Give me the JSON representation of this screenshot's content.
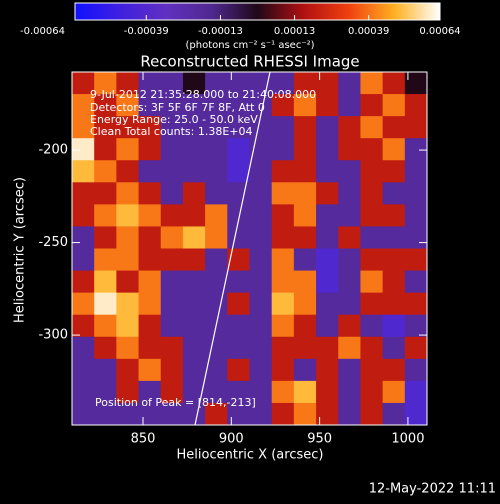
{
  "chart_data": {
    "type": "heatmap",
    "title": "Reconstructed RHESSI Image",
    "xlabel": "Heliocentric X (arcsec)",
    "ylabel": "Heliocentric Y (arcsec)",
    "xlim": [
      809.8,
      1010.8
    ],
    "ylim": [
      -348.6,
      -157.8
    ],
    "xticks": [
      850,
      900,
      950,
      1000
    ],
    "yticks": [
      -200,
      -250,
      -300
    ],
    "colorbar": {
      "label": "(photons cm⁻² s⁻¹ asec⁻²)",
      "clim": [
        -0.00064,
        0.00064
      ],
      "ticks": [
        -0.00064,
        -0.00039,
        -0.00013,
        0.00013,
        0.00039,
        0.00064
      ],
      "colormap": [
        "#1010ff",
        "#4020e0",
        "#6030c0",
        "#502890",
        "#200818",
        "#b01010",
        "#f04010",
        "#ffb020",
        "#ffffff"
      ]
    },
    "annotations": [
      "9-Jul-2012 21:35:28.000 to 21:40:08.000",
      "Detectors: 3F 5F 6F 7F 8F, Att 0",
      "Energy Range: 25.0 - 50.0 keV",
      "Clean    Total counts: 1.38E+04",
      "Position of Peak = [814,-213]"
    ],
    "footer": "12-May-2022 11:11",
    "z": [
      [
        0.0002,
        0.0004,
        0.0002,
        -0.0002,
        -0.0002,
        0,
        -0.0002,
        -0.0002,
        -0.0002,
        -0.0002,
        0.0002,
        0.0002,
        -0.0002,
        0.0004,
        0.0002,
        0
      ],
      [
        0.0004,
        0.0002,
        0.0004,
        -0.0002,
        -0.0002,
        -0.0002,
        -0.0002,
        -0.0002,
        -0.0002,
        0.0002,
        0.0004,
        0.0002,
        -0.0002,
        0.0002,
        0.0004,
        0.0002
      ],
      [
        0.0004,
        0.0002,
        0.0002,
        0.0002,
        -0.0002,
        -0.0002,
        -0.0002,
        -0.0002,
        -0.0002,
        -0.0002,
        0.0002,
        -0.0002,
        0.0002,
        0.0004,
        0.0002,
        0.0002
      ],
      [
        0.0006,
        0.0002,
        0.0004,
        0.0002,
        -0.0002,
        -0.0002,
        -0.0002,
        -0.0004,
        -0.0002,
        -0.0002,
        0.0002,
        -0.0002,
        0.0002,
        0.0002,
        0.0004,
        -0.0002
      ],
      [
        0.0005,
        0.0004,
        0.0002,
        -0.0002,
        -0.0002,
        -0.0002,
        -0.0002,
        -0.0004,
        -0.0002,
        0.0002,
        0.0002,
        -0.0002,
        -0.0002,
        0.0002,
        0.0002,
        -0.0002
      ],
      [
        0.0002,
        0.0002,
        0.0004,
        0.0002,
        -0.0002,
        0.0002,
        -0.0002,
        -0.0002,
        -0.0002,
        0.0004,
        0.0004,
        0.0002,
        -0.0002,
        0.0002,
        -0.0002,
        -0.0002
      ],
      [
        0.0002,
        0.0004,
        0.0005,
        0.0004,
        0.0002,
        0.0002,
        0.0004,
        -0.0002,
        -0.0002,
        0.0002,
        0.0004,
        -0.0002,
        -0.0002,
        0.0002,
        0.0002,
        -0.0002
      ],
      [
        -0.0002,
        0.0002,
        0.0004,
        0.0002,
        0.0004,
        0.0005,
        0.0004,
        -0.0002,
        -0.0002,
        0.0002,
        0.0002,
        -0.0002,
        0.0002,
        -0.0002,
        -0.0002,
        -0.0002
      ],
      [
        -0.0002,
        0.0004,
        0.0004,
        0.0002,
        0.0002,
        0.0002,
        -0.0002,
        0.0002,
        -0.0002,
        0.0004,
        -0.0002,
        -0.0004,
        -0.0002,
        0.0002,
        0.0002,
        0.0002
      ],
      [
        0.0002,
        0.0005,
        0.0002,
        0.0004,
        -0.0002,
        -0.0002,
        -0.0002,
        -0.0002,
        -0.0002,
        0.0004,
        0.0004,
        -0.0004,
        -0.0002,
        0.0004,
        0.0002,
        -0.0002
      ],
      [
        0.0004,
        0.0006,
        0.0005,
        0.0004,
        -0.0002,
        -0.0002,
        -0.0002,
        0.0002,
        -0.0002,
        0.0005,
        0.0004,
        -0.0002,
        -0.0002,
        0.0002,
        0.0002,
        0.0002
      ],
      [
        0.0002,
        0.0004,
        0.0005,
        0.0002,
        -0.0002,
        -0.0002,
        -0.0002,
        -0.0002,
        -0.0002,
        0.0004,
        0.0002,
        -0.0002,
        0.0002,
        -0.0002,
        -0.0004,
        -0.0002
      ],
      [
        -0.0002,
        0.0002,
        0.0004,
        0.0002,
        0.0002,
        -0.0002,
        -0.0002,
        -0.0002,
        -0.0002,
        0.0002,
        0.0002,
        0.0002,
        0.0004,
        0.0002,
        -0.0002,
        0.0002
      ],
      [
        -0.0002,
        -0.0002,
        0.0002,
        0.0004,
        0.0002,
        -0.0002,
        -0.0002,
        0.0002,
        -0.0002,
        0.0002,
        -0.0002,
        0.0002,
        -0.0002,
        0.0002,
        0.0002,
        -0.0002
      ],
      [
        -0.0002,
        -0.0002,
        0.0002,
        -0.0002,
        0.0002,
        -0.0002,
        -0.0002,
        -0.0002,
        -0.0002,
        0.0004,
        0.0005,
        0.0002,
        -0.0002,
        0.0002,
        0.0004,
        -0.0004
      ],
      [
        -0.0002,
        -0.0002,
        -0.0002,
        -0.0002,
        -0.0002,
        -0.0002,
        0.0002,
        -0.0002,
        -0.0002,
        0.0002,
        0.0004,
        0.0002,
        -0.0002,
        0.0002,
        -0.0002,
        -0.0004
      ]
    ]
  }
}
